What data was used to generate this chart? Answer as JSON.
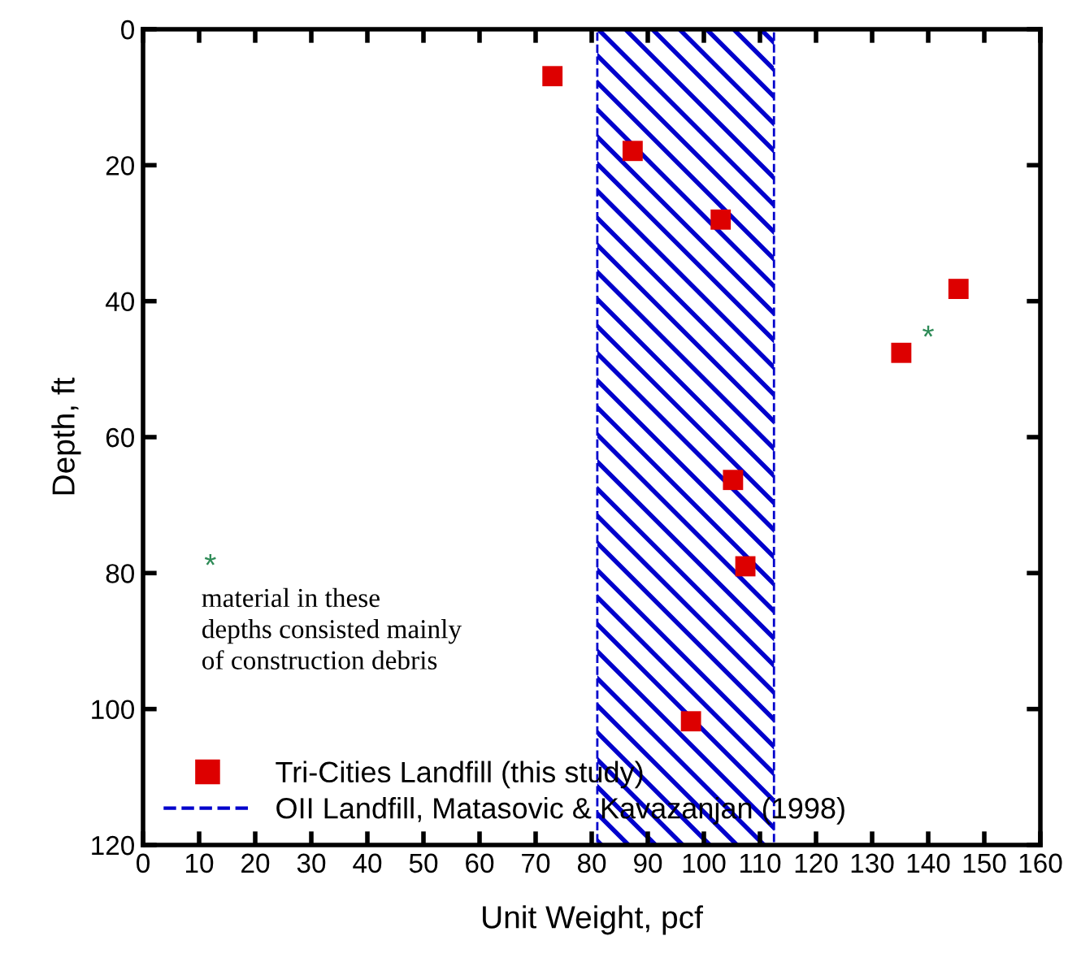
{
  "chart_data": {
    "type": "scatter",
    "xlabel": "Unit Weight, pcf",
    "ylabel": "Depth, ft",
    "xlim": [
      0,
      160
    ],
    "xticks": [
      0,
      10,
      20,
      30,
      40,
      50,
      60,
      70,
      80,
      90,
      100,
      110,
      120,
      130,
      140,
      150,
      160
    ],
    "ylim": [
      120,
      0
    ],
    "yticks": [
      0,
      20,
      40,
      60,
      80,
      100,
      120
    ],
    "series": [
      {
        "name": "Tri-Cities Landfill (this study)",
        "color": "#dd0000",
        "marker": "square",
        "x": [
          73,
          87.3,
          103,
          145.4,
          135.2,
          105.2,
          107.4,
          97.7
        ],
        "values": [
          6.9,
          17.9,
          28,
          38.2,
          47.6,
          66.3,
          79,
          101.8
        ]
      }
    ],
    "bands": [
      {
        "axis": "x",
        "from": 81,
        "to": 112.5,
        "label": "OII Landfill, Matasovic & Kavazanjan (1998)",
        "color": "#0000cc"
      }
    ],
    "annotations": [
      "*",
      "*",
      "material in these\ndepths consisted mainly\nof construction debris"
    ],
    "grid": false,
    "legend": "bottom left"
  }
}
